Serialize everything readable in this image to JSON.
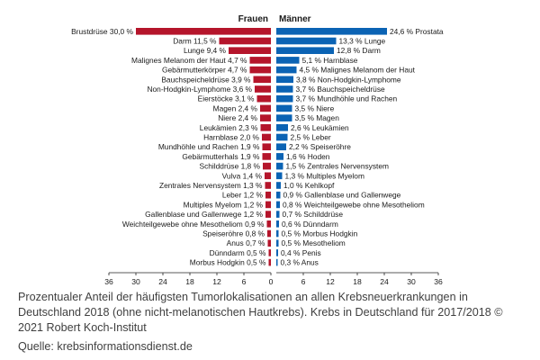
{
  "chart_data": {
    "type": "bar",
    "layout": "diverging-horizontal",
    "colors": {
      "frauen": "#b5152b",
      "maenner": "#0b63b4",
      "axis": "#222222",
      "text": "#1a1a1a"
    },
    "series": [
      {
        "name": "Frauen",
        "categories": [
          "Brustdrüse",
          "Darm",
          "Lunge",
          "Malignes Melanom der Haut",
          "Gebärmutterkörper",
          "Bauchspeicheldrüse",
          "Non-Hodgkin-Lymphome",
          "Eierstöcke",
          "Magen",
          "Niere",
          "Leukämien",
          "Harnblase",
          "Mundhöhle und Rachen",
          "Gebärmutterhals",
          "Schilddrüse",
          "Vulva",
          "Zentrales Nervensystem",
          "Leber",
          "Multiples Myelom",
          "Gallenblase und Gallenwege",
          "Weichteilgewebe ohne Mesotheliom",
          "Speiseröhre",
          "Anus",
          "Dünndarm",
          "Morbus Hodgkin"
        ],
        "values": [
          30.0,
          11.5,
          9.4,
          4.7,
          4.7,
          3.9,
          3.6,
          3.1,
          2.4,
          2.4,
          2.3,
          2.0,
          1.9,
          1.9,
          1.8,
          1.4,
          1.3,
          1.2,
          1.2,
          1.2,
          0.9,
          0.8,
          0.7,
          0.5,
          0.5
        ],
        "labels": [
          "Brustdrüse 30,0 %",
          "Darm 11,5 %",
          "Lunge 9,4 %",
          "Malignes Melanom der Haut 4,7 %",
          "Gebärmutterkörper 4,7 %",
          "Bauchspeicheldrüse 3,9 %",
          "Non-Hodgkin-Lymphome 3,6 %",
          "Eierstöcke 3,1 %",
          "Magen 2,4 %",
          "Niere 2,4 %",
          "Leukämien 2,3 %",
          "Harnblase 2,0 %",
          "Mundhöhle und Rachen 1,9 %",
          "Gebärmutterhals 1,9 %",
          "Schilddrüse 1,8 %",
          "Vulva 1,4 %",
          "Zentrales Nervensystem 1,3 %",
          "Leber 1,2 %",
          "Multiples Myelom 1,2 %",
          "Gallenblase und Gallenwege 1,2 %",
          "Weichteilgewebe ohne Mesotheliom 0,9 %",
          "Speiseröhre 0,8 %",
          "Anus 0,7 %",
          "Dünndarm 0,5 %",
          "Morbus Hodgkin 0,5 %"
        ]
      },
      {
        "name": "Männer",
        "categories": [
          "Prostata",
          "Lunge",
          "Darm",
          "Harnblase",
          "Malignes Melanom der Haut",
          "Non-Hodgkin-Lymphome",
          "Bauchspeicheldrüse",
          "Mundhöhle und Rachen",
          "Niere",
          "Magen",
          "Leukämien",
          "Leber",
          "Speiseröhre",
          "Hoden",
          "Zentrales Nervensystem",
          "Multiples Myelom",
          "Kehlkopf",
          "Gallenblase und Gallenwege",
          "Weichteilgewebe ohne Mesotheliom",
          "Schilddrüse",
          "Dünndarm",
          "Morbus Hodgkin",
          "Mesotheliom",
          "Penis",
          "Anus"
        ],
        "values": [
          24.6,
          13.3,
          12.8,
          5.1,
          4.5,
          3.8,
          3.7,
          3.7,
          3.5,
          3.5,
          2.6,
          2.5,
          2.2,
          1.6,
          1.5,
          1.3,
          1.0,
          0.9,
          0.8,
          0.7,
          0.6,
          0.5,
          0.5,
          0.4,
          0.3
        ],
        "labels": [
          "24,6 % Prostata",
          "13,3 % Lunge",
          "12,8 % Darm",
          "5,1 % Harnblase",
          "4,5 % Malignes Melanom der Haut",
          "3,8 % Non-Hodgkin-Lymphome",
          "3,7 % Bauchspeicheldrüse",
          "3,7 % Mundhöhle und Rachen",
          "3,5 % Niere",
          "3,5 % Magen",
          "2,6 % Leukämien",
          "2,5 % Leber",
          "2,2 % Speiseröhre",
          "1,6 % Hoden",
          "1,5 % Zentrales Nervensystem",
          "1,3 % Multiples Myelom",
          "1,0 % Kehlkopf",
          "0,9 % Gallenblase und Gallenwege",
          "0,8 % Weichteilgewebe ohne Mesotheliom",
          "0,7 % Schilddrüse",
          "0,6 % Dünndarm",
          "0,5 % Morbus Hodgkin",
          "0,5 % Mesotheliom",
          "0,4 % Penis",
          "0,3 % Anus"
        ]
      }
    ],
    "xlim": [
      0,
      36
    ],
    "ticks": [
      36,
      30,
      24,
      18,
      12,
      6,
      0,
      6,
      12,
      18,
      24,
      30,
      36
    ],
    "grid": false,
    "legend": "none"
  },
  "caption": "Prozentualer Anteil der häufigsten Tumorlokalisationen an allen Krebsneuerkrankungen in Deutschland 2018 (ohne nicht-melanotischen Hautkrebs). Krebs in Deutschland für 2017/2018 © 2021 Robert Koch-Institut",
  "source": "Quelle: krebsinformationsdienst.de"
}
